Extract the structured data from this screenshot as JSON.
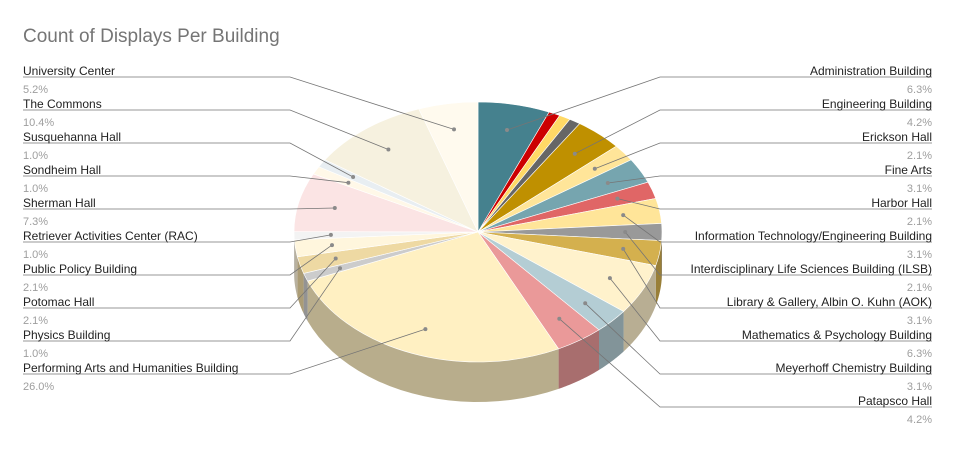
{
  "chart_data": {
    "type": "pie",
    "title": "Count of Displays Per Building",
    "three_d": true,
    "legend": "labeled-callouts",
    "slices": [
      {
        "name": "Administration Building",
        "pct_label": "6.3%",
        "value": 6.3,
        "color": "#45818e"
      },
      {
        "name": "Red segment",
        "pct_label": "",
        "value": 1.0,
        "color": "#cc0000",
        "unlabeled": true
      },
      {
        "name": "Yellow segment",
        "pct_label": "",
        "value": 1.0,
        "color": "#ffd966",
        "unlabeled": true
      },
      {
        "name": "Gray segment",
        "pct_label": "",
        "value": 1.0,
        "color": "#666666",
        "unlabeled": true
      },
      {
        "name": "Engineering Building",
        "pct_label": "4.2%",
        "value": 4.2,
        "color": "#bf9000"
      },
      {
        "name": "Erickson Hall",
        "pct_label": "2.1%",
        "value": 2.1,
        "color": "#ffe599"
      },
      {
        "name": "Fine Arts",
        "pct_label": "3.1%",
        "value": 3.1,
        "color": "#76a5af"
      },
      {
        "name": "Harbor Hall",
        "pct_label": "2.1%",
        "value": 2.1,
        "color": "#e06666"
      },
      {
        "name": "Information Technology/Engineering Building",
        "pct_label": "3.1%",
        "value": 3.1,
        "color": "#ffe599"
      },
      {
        "name": "Interdisciplinary Life Sciences Building (ILSB)",
        "pct_label": "2.1%",
        "value": 2.1,
        "color": "#999999"
      },
      {
        "name": "Library & Gallery, Albin O. Kuhn (AOK)",
        "pct_label": "3.1%",
        "value": 3.1,
        "color": "#d4b04e"
      },
      {
        "name": "Mathematics & Psychology Building",
        "pct_label": "6.3%",
        "value": 6.3,
        "color": "#fff2cc"
      },
      {
        "name": "Meyerhoff Chemistry Building",
        "pct_label": "3.1%",
        "value": 3.1,
        "color": "#b4cdd4"
      },
      {
        "name": "Patapsco Hall",
        "pct_label": "4.2%",
        "value": 4.2,
        "color": "#ea9999"
      },
      {
        "name": "Performing Arts and Humanities Building",
        "pct_label": "26.0%",
        "value": 26.0,
        "color": "#fff0c2"
      },
      {
        "name": "Physics Building",
        "pct_label": "1.0%",
        "value": 1.0,
        "color": "#cccccc"
      },
      {
        "name": "Potomac Hall",
        "pct_label": "2.1%",
        "value": 2.1,
        "color": "#eed9a3"
      },
      {
        "name": "Public Policy Building",
        "pct_label": "2.1%",
        "value": 2.1,
        "color": "#fff6dd"
      },
      {
        "name": "Retriever Activities Center (RAC)",
        "pct_label": "1.0%",
        "value": 1.0,
        "color": "#f3f3f3"
      },
      {
        "name": "Sherman Hall",
        "pct_label": "7.3%",
        "value": 7.3,
        "color": "#fbe4e4"
      },
      {
        "name": "Sondheim Hall",
        "pct_label": "1.0%",
        "value": 1.0,
        "color": "#fff8e8"
      },
      {
        "name": "Susquehanna Hall",
        "pct_label": "1.0%",
        "value": 1.0,
        "color": "#e8eef2"
      },
      {
        "name": "The Commons",
        "pct_label": "10.4%",
        "value": 10.4,
        "color": "#f6f1df"
      },
      {
        "name": "University Center",
        "pct_label": "5.2%",
        "value": 5.2,
        "color": "#fffaee"
      }
    ]
  }
}
